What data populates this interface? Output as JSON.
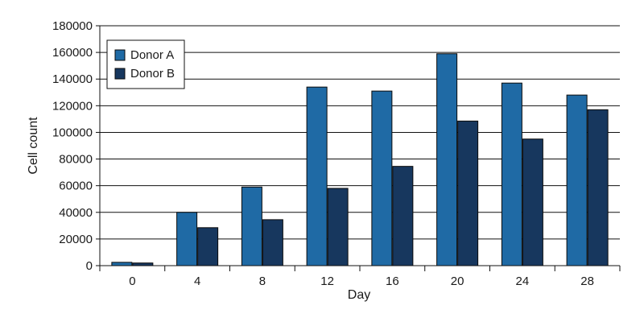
{
  "chart_data": {
    "type": "bar",
    "title": "",
    "xlabel": "Day",
    "ylabel": "Cell count",
    "categories": [
      "0",
      "4",
      "8",
      "12",
      "16",
      "20",
      "24",
      "28"
    ],
    "series": [
      {
        "name": "Donor A",
        "color": "#1f6aa5",
        "values": [
          2500,
          40000,
          59000,
          134000,
          131000,
          159000,
          137000,
          128000
        ]
      },
      {
        "name": "Donor B",
        "color": "#17375e",
        "values": [
          2000,
          28500,
          34500,
          58000,
          74500,
          108500,
          95000,
          117000
        ]
      }
    ],
    "ylim": [
      0,
      180000
    ],
    "yticks": [
      0,
      20000,
      40000,
      60000,
      80000,
      100000,
      120000,
      140000,
      160000,
      180000
    ],
    "grid": true,
    "legend_position": "top-left"
  }
}
